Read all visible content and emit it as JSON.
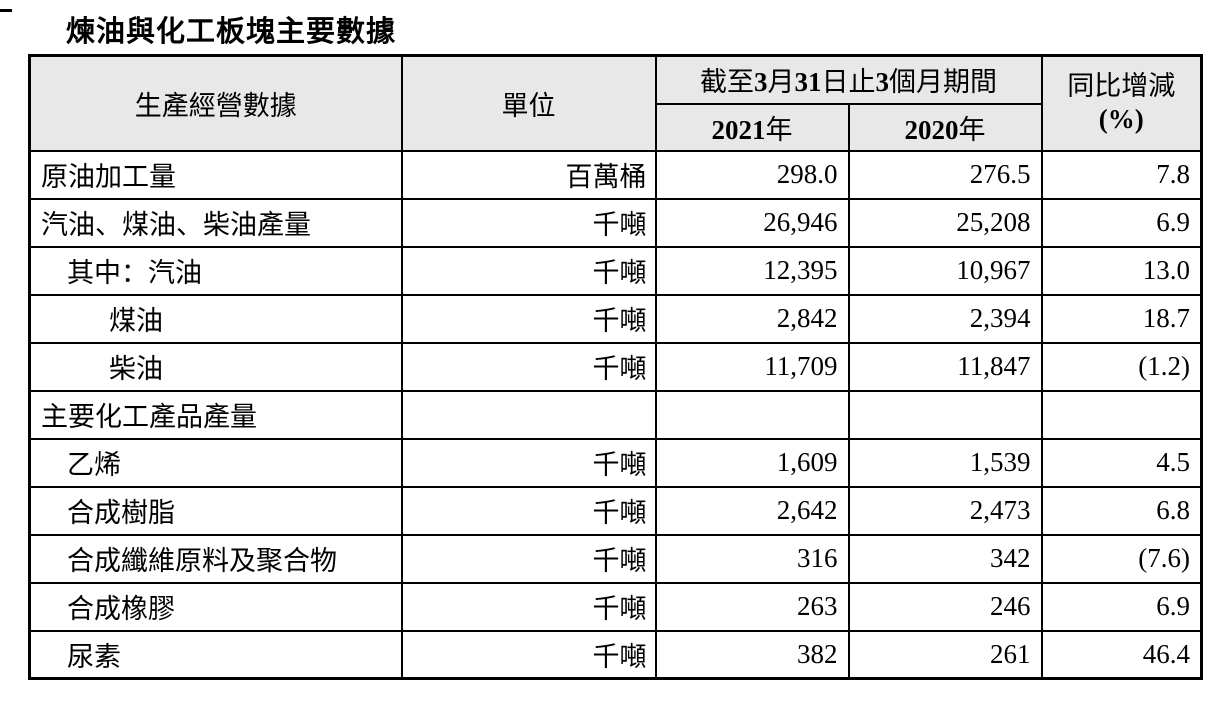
{
  "title": "煉油與化工板塊主要數據",
  "colors": {
    "header_bg": "#e8e8e8",
    "border": "#000000",
    "text": "#000000"
  },
  "table": {
    "header": {
      "item_col": "生產經營數據",
      "unit_col": "單位",
      "period": "截至3月31日止3個月期間",
      "year_2021": "2021年",
      "year_2020": "2020年",
      "yoy_line1": "同比增減",
      "yoy_line2": "(%)"
    },
    "rows": [
      {
        "item": "原油加工量",
        "unit": "百萬桶",
        "y2021": "298.0",
        "y2020": "276.5",
        "yoy": "7.8",
        "indent": 0
      },
      {
        "item": "汽油、煤油、柴油產量",
        "unit": "千噸",
        "y2021": "26,946",
        "y2020": "25,208",
        "yoy": "6.9",
        "indent": 0
      },
      {
        "item": "其中：汽油",
        "unit": "千噸",
        "y2021": "12,395",
        "y2020": "10,967",
        "yoy": "13.0",
        "indent": 1
      },
      {
        "item": "煤油",
        "unit": "千噸",
        "y2021": "2,842",
        "y2020": "2,394",
        "yoy": "18.7",
        "indent": 2
      },
      {
        "item": "柴油",
        "unit": "千噸",
        "y2021": "11,709",
        "y2020": "11,847",
        "yoy": "(1.2)",
        "indent": 2
      },
      {
        "item": "主要化工產品產量",
        "unit": "",
        "y2021": "",
        "y2020": "",
        "yoy": "",
        "indent": 0
      },
      {
        "item": "乙烯",
        "unit": "千噸",
        "y2021": "1,609",
        "y2020": "1,539",
        "yoy": "4.5",
        "indent": 1
      },
      {
        "item": "合成樹脂",
        "unit": "千噸",
        "y2021": "2,642",
        "y2020": "2,473",
        "yoy": "6.8",
        "indent": 1
      },
      {
        "item": "合成纖維原料及聚合物",
        "unit": "千噸",
        "y2021": "316",
        "y2020": "342",
        "yoy": "(7.6)",
        "indent": 1
      },
      {
        "item": "合成橡膠",
        "unit": "千噸",
        "y2021": "263",
        "y2020": "246",
        "yoy": "6.9",
        "indent": 1
      },
      {
        "item": "尿素",
        "unit": "千噸",
        "y2021": "382",
        "y2020": "261",
        "yoy": "46.4",
        "indent": 1
      }
    ]
  }
}
